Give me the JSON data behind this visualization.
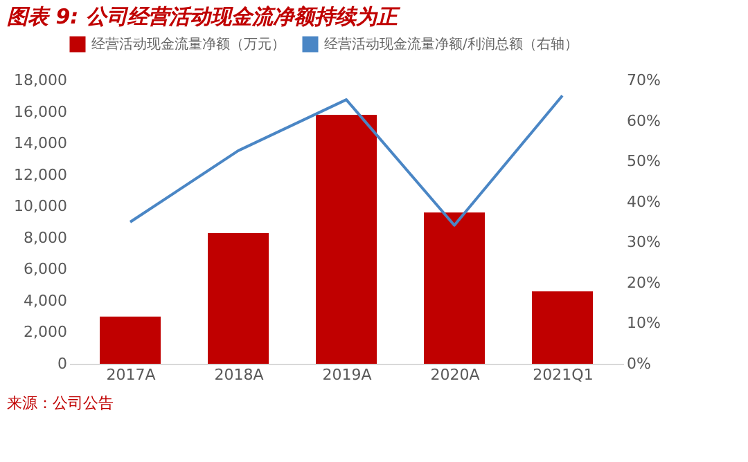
{
  "chart_data": {
    "type": "bar",
    "title": "图表 9:  公司经营活动现金流净额持续为正",
    "categories": [
      "2017A",
      "2018A",
      "2019A",
      "2020A",
      "2021Q1"
    ],
    "series": [
      {
        "name": "经营活动现金流量净额（万元）",
        "color": "#c00000",
        "values": [
          3000,
          8300,
          15800,
          9600,
          4600
        ]
      },
      {
        "name": "经营活动现金流量净额/利润总额（右轴）",
        "color": "#4a86c5",
        "type": "line",
        "axis": "y2",
        "values": [
          35.0,
          52.6,
          65.2,
          34.2,
          66.2
        ]
      }
    ],
    "ylim": [
      0,
      18000
    ],
    "yticks": [
      0,
      {
        "value": 2000,
        "label": "2,000"
      },
      {
        "value": 4000,
        "label": "4,000"
      },
      {
        "value": 6000,
        "label": "6,000"
      },
      {
        "value": 8000,
        "label": "8,000"
      },
      {
        "value": 10000,
        "label": "10,000"
      },
      {
        "value": 12000,
        "label": "12,000"
      },
      {
        "value": 14000,
        "label": "14,000"
      },
      {
        "value": 16000,
        "label": "16,000"
      },
      {
        "value": 18000,
        "label": "18,000"
      }
    ],
    "y2lim": [
      0,
      70
    ],
    "y2ticks": [
      {
        "value": 0,
        "label": "0%"
      },
      {
        "value": 10,
        "label": "10%"
      },
      {
        "value": 20,
        "label": "20%"
      },
      {
        "value": 30,
        "label": "30%"
      },
      {
        "value": 40,
        "label": "40%"
      },
      {
        "value": 50,
        "label": "50%"
      },
      {
        "value": 60,
        "label": "60%"
      },
      {
        "value": 70,
        "label": "70%"
      }
    ],
    "grid": false,
    "legend": "top",
    "annotations": [
      "来源：公司公告"
    ]
  }
}
